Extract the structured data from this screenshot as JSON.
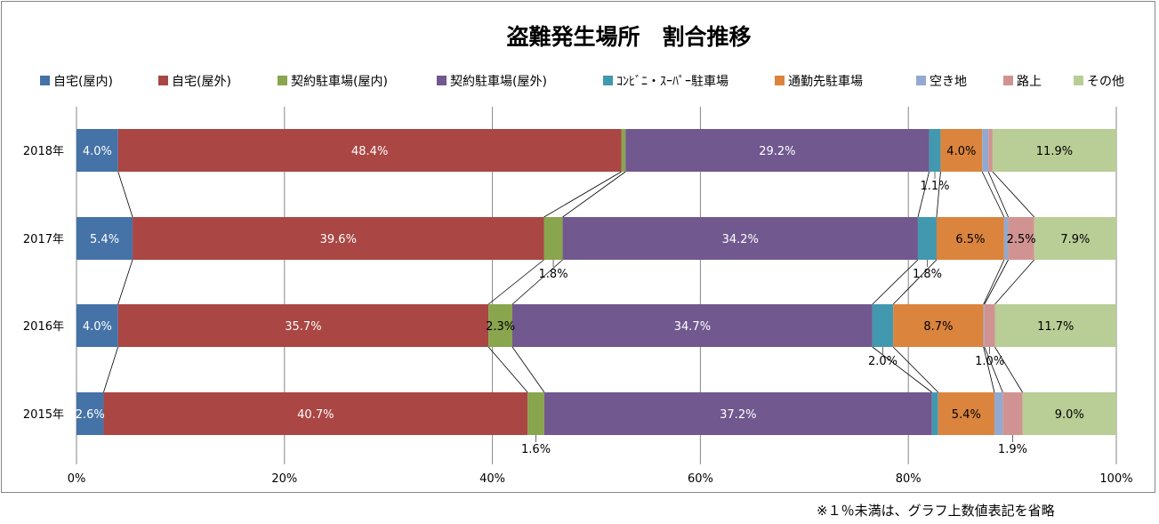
{
  "chart_data": {
    "type": "bar",
    "orientation": "horizontal",
    "stacked": "percent",
    "title": "盗難発生場所　割合推移",
    "categories": [
      "2018年",
      "2017年",
      "2016年",
      "2015年"
    ],
    "series": [
      {
        "name": "自宅(屋内)",
        "color": "#4572a7",
        "values": [
          4.0,
          5.4,
          4.0,
          2.6
        ],
        "labels": [
          "4.0%",
          "5.4%",
          "4.0%",
          "2.6%"
        ]
      },
      {
        "name": "自宅(屋外)",
        "color": "#aa4643",
        "values": [
          48.4,
          39.6,
          35.7,
          40.7
        ],
        "labels": [
          "48.4%",
          "39.6%",
          "35.7%",
          "40.7%"
        ]
      },
      {
        "name": "契約駐車場(屋内)",
        "color": "#89a54e",
        "values": [
          0.4,
          1.8,
          2.3,
          1.6
        ],
        "labels": [
          "",
          "1.8%",
          "2.3%",
          "1.6%"
        ]
      },
      {
        "name": "契約駐車場(屋外)",
        "color": "#71588f",
        "values": [
          29.2,
          34.2,
          34.7,
          37.2
        ],
        "labels": [
          "29.2%",
          "34.2%",
          "34.7%",
          "37.2%"
        ]
      },
      {
        "name": "ｺﾝﾋﾞﾆ・ｽｰﾊﾟｰ駐車場",
        "color": "#4198af",
        "values": [
          1.1,
          1.8,
          2.0,
          0.6
        ],
        "labels": [
          "1.1%",
          "1.8%",
          "2.0%",
          ""
        ]
      },
      {
        "name": "通勤先駐車場",
        "color": "#db843d",
        "values": [
          4.0,
          6.5,
          8.7,
          5.4
        ],
        "labels": [
          "4.0%",
          "6.5%",
          "8.7%",
          "5.4%"
        ]
      },
      {
        "name": "空き地",
        "color": "#93a9cf",
        "values": [
          0.6,
          0.4,
          0.1,
          0.8
        ],
        "labels": [
          "",
          "",
          "",
          ""
        ]
      },
      {
        "name": "路上",
        "color": "#d19392",
        "values": [
          0.4,
          2.5,
          1.0,
          1.9
        ],
        "labels": [
          "",
          "2.5%",
          "1.0%",
          "1.9%"
        ]
      },
      {
        "name": "その他",
        "color": "#b9cd96",
        "values": [
          11.9,
          7.9,
          11.7,
          9.0
        ],
        "labels": [
          "11.9%",
          "7.9%",
          "11.7%",
          "9.0%"
        ]
      }
    ],
    "xlim": [
      0,
      100
    ],
    "xticks": [
      "0%",
      "20%",
      "40%",
      "60%",
      "80%",
      "100%"
    ],
    "grid": true,
    "legend": "top",
    "series_lines": true
  },
  "footnote": "※１％未満は、グラフ上数値表記を省略"
}
